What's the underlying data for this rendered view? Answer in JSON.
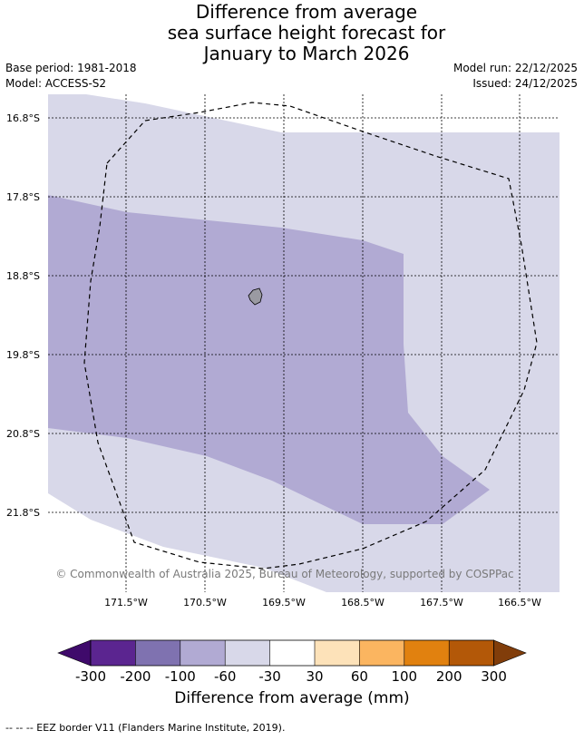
{
  "title": {
    "line1": "Difference from average",
    "line2": "sea surface height forecast for",
    "line3": "January to March 2026"
  },
  "meta": {
    "base_period": "Base period: 1981-2018",
    "model": "Model: ACCESS-S2",
    "model_run": "Model run: 22/12/2025",
    "issued": "Issued: 24/12/2025"
  },
  "map": {
    "lat_labels": [
      "16.8°S",
      "17.8°S",
      "18.8°S",
      "19.8°S",
      "20.8°S",
      "21.8°S"
    ],
    "lon_labels": [
      "171.5°W",
      "170.5°W",
      "169.5°W",
      "168.5°W",
      "167.5°W",
      "166.5°W"
    ],
    "copyright": "© Commonwealth of Australia 2025, Bureau of Meteorology, supported by COSPPac",
    "colors": {
      "light_lavender": "#d8d8e9",
      "medium_lavender": "#b1aad3",
      "island": "#9a9aa2"
    }
  },
  "colorbar": {
    "ticks": [
      "-300",
      "-200",
      "-100",
      "-60",
      "-30",
      "30",
      "60",
      "100",
      "200",
      "300"
    ],
    "colors": [
      "#3f0a6b",
      "#5b2590",
      "#7f72b0",
      "#b1aad3",
      "#d8d8e9",
      "#ffffff",
      "#fde2b9",
      "#fbb560",
      "#e1810f",
      "#b35808",
      "#813d0a"
    ],
    "label": "Difference from average (mm)"
  },
  "footer": {
    "legend": "--  --  -- EEZ border V11 (Flanders Marine Institute, 2019)."
  }
}
